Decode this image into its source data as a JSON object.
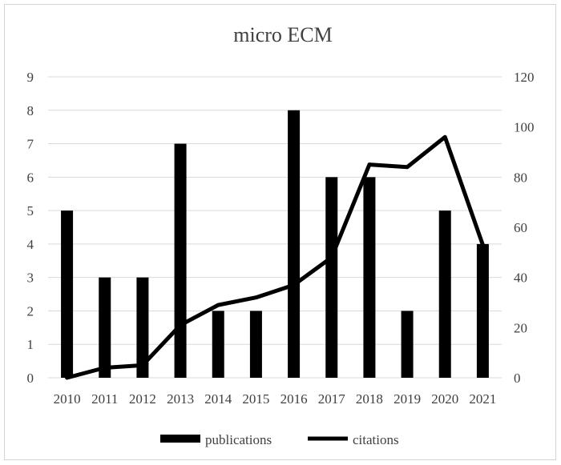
{
  "chart_data": {
    "type": "bar+line",
    "title": "micro ECM",
    "categories": [
      "2010",
      "2011",
      "2012",
      "2013",
      "2014",
      "2015",
      "2016",
      "2017",
      "2018",
      "2019",
      "2020",
      "2021"
    ],
    "series": [
      {
        "name": "publications",
        "type": "bar",
        "axis": "left",
        "values": [
          5,
          3,
          3,
          7,
          2,
          2,
          8,
          6,
          6,
          2,
          5,
          4
        ]
      },
      {
        "name": "citations",
        "type": "line",
        "axis": "right",
        "values": [
          0,
          4,
          5,
          21,
          29,
          32,
          37,
          48,
          85,
          84,
          96,
          53
        ]
      }
    ],
    "y_left": {
      "ylim": [
        0,
        9
      ],
      "ticks": [
        0,
        1,
        2,
        3,
        4,
        5,
        6,
        7,
        8,
        9
      ]
    },
    "y_right": {
      "ylim": [
        0,
        120
      ],
      "ticks": [
        0,
        20,
        40,
        60,
        80,
        100,
        120
      ]
    },
    "grid": true,
    "legend": "bottom",
    "colors": {
      "bar": "#000000",
      "line": "#000000",
      "grid": "#d9d9d9"
    }
  }
}
